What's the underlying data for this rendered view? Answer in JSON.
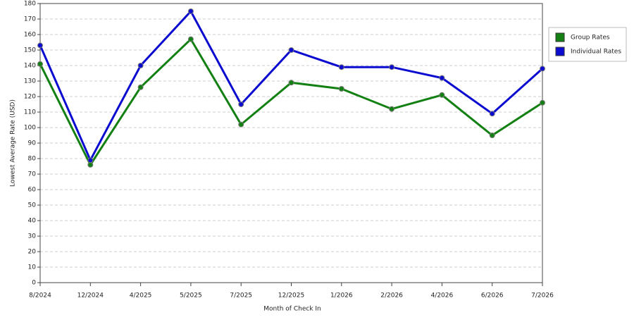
{
  "chart_data": {
    "type": "line",
    "x_label": "Month of Check In",
    "y_label": "Lowest Average Rate (USD)",
    "categories": [
      "8/2024",
      "12/2024",
      "4/2025",
      "5/2025",
      "7/2025",
      "12/2025",
      "1/2026",
      "2/2026",
      "4/2026",
      "6/2026",
      "7/2026"
    ],
    "series": [
      {
        "name": "Group Rates",
        "color": "#138013",
        "values": [
          141,
          76,
          126,
          157,
          102,
          129,
          125,
          112,
          121,
          95,
          116
        ]
      },
      {
        "name": "Individual Rates",
        "color": "#0c0cd0",
        "values": [
          153,
          79,
          140,
          175,
          115,
          150,
          139,
          139,
          132,
          109,
          138
        ]
      }
    ],
    "ylim": [
      0,
      180
    ],
    "yticks": [
      0,
      10,
      20,
      30,
      40,
      50,
      60,
      70,
      80,
      90,
      100,
      110,
      120,
      130,
      140,
      150,
      160,
      170,
      180
    ],
    "grid": true,
    "legend": "right"
  }
}
